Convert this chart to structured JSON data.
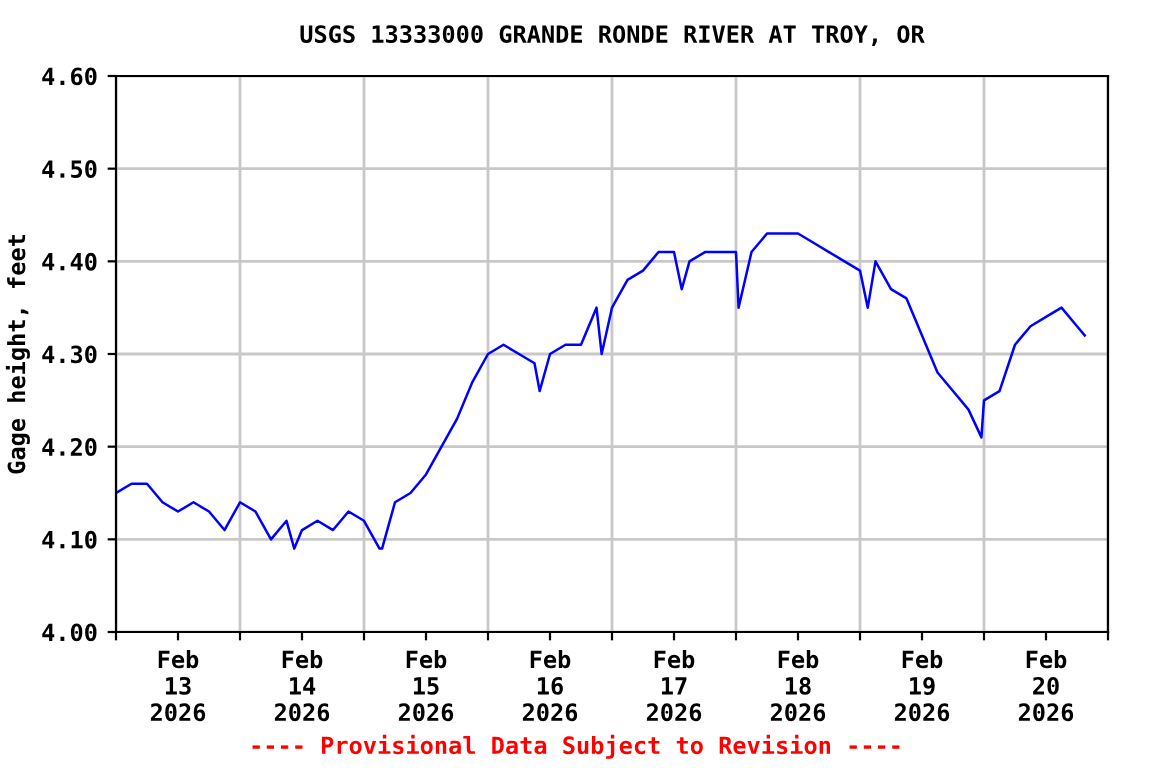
{
  "chart_data": {
    "type": "line",
    "title": "USGS 13333000 GRANDE RONDE RIVER AT TROY, OR",
    "ylabel": "Gage height, feet",
    "x": [
      "2026-02-13T00:00",
      "2026-02-13T03:00",
      "2026-02-13T06:00",
      "2026-02-13T09:00",
      "2026-02-13T12:00",
      "2026-02-13T15:00",
      "2026-02-13T18:00",
      "2026-02-13T21:00",
      "2026-02-14T00:00",
      "2026-02-14T03:00",
      "2026-02-14T06:00",
      "2026-02-14T09:00",
      "2026-02-14T10:30",
      "2026-02-14T12:00",
      "2026-02-14T15:00",
      "2026-02-14T18:00",
      "2026-02-14T21:00",
      "2026-02-15T00:00",
      "2026-02-15T03:00",
      "2026-02-15T03:30",
      "2026-02-15T06:00",
      "2026-02-15T09:00",
      "2026-02-15T12:00",
      "2026-02-15T15:00",
      "2026-02-15T18:00",
      "2026-02-15T21:00",
      "2026-02-16T00:00",
      "2026-02-16T03:00",
      "2026-02-16T06:00",
      "2026-02-16T09:00",
      "2026-02-16T10:00",
      "2026-02-16T12:00",
      "2026-02-16T15:00",
      "2026-02-16T18:00",
      "2026-02-16T21:00",
      "2026-02-16T22:00",
      "2026-02-17T00:00",
      "2026-02-17T03:00",
      "2026-02-17T06:00",
      "2026-02-17T09:00",
      "2026-02-17T12:00",
      "2026-02-17T13:30",
      "2026-02-17T15:00",
      "2026-02-17T18:00",
      "2026-02-17T21:00",
      "2026-02-18T00:00",
      "2026-02-18T00:30",
      "2026-02-18T03:00",
      "2026-02-18T06:00",
      "2026-02-18T09:00",
      "2026-02-18T12:00",
      "2026-02-18T15:00",
      "2026-02-18T18:00",
      "2026-02-18T21:00",
      "2026-02-19T00:00",
      "2026-02-19T01:30",
      "2026-02-19T03:00",
      "2026-02-19T06:00",
      "2026-02-19T09:00",
      "2026-02-19T12:00",
      "2026-02-19T15:00",
      "2026-02-19T18:00",
      "2026-02-19T21:00",
      "2026-02-19T23:30",
      "2026-02-20T00:00",
      "2026-02-20T03:00",
      "2026-02-20T06:00",
      "2026-02-20T09:00",
      "2026-02-20T12:00",
      "2026-02-20T15:00",
      "2026-02-20T18:00",
      "2026-02-20T19:30"
    ],
    "series": [
      {
        "color": "#0000ff",
        "values": [
          4.15,
          4.16,
          4.16,
          4.14,
          4.13,
          4.14,
          4.13,
          4.11,
          4.14,
          4.13,
          4.1,
          4.12,
          4.09,
          4.11,
          4.12,
          4.11,
          4.13,
          4.12,
          4.09,
          4.09,
          4.14,
          4.15,
          4.17,
          4.2,
          4.23,
          4.27,
          4.3,
          4.31,
          4.3,
          4.29,
          4.26,
          4.3,
          4.31,
          4.31,
          4.35,
          4.3,
          4.35,
          4.38,
          4.39,
          4.41,
          4.41,
          4.37,
          4.4,
          4.41,
          4.41,
          4.41,
          4.35,
          4.41,
          4.43,
          4.43,
          4.43,
          4.42,
          4.41,
          4.4,
          4.39,
          4.35,
          4.4,
          4.37,
          4.36,
          4.32,
          4.28,
          4.26,
          4.24,
          4.21,
          4.25,
          4.26,
          4.31,
          4.33,
          4.34,
          4.35,
          4.33,
          4.32
        ]
      }
    ],
    "xlim": [
      "2026-02-13T00:00",
      "2026-02-21T00:00"
    ],
    "xticks": [
      {
        "value": "2026-02-13T00:00",
        "label": null
      },
      {
        "value": "2026-02-13T12:00",
        "label": "Feb\n13\n2026"
      },
      {
        "value": "2026-02-14T00:00",
        "label": null
      },
      {
        "value": "2026-02-14T12:00",
        "label": "Feb\n14\n2026"
      },
      {
        "value": "2026-02-15T00:00",
        "label": null
      },
      {
        "value": "2026-02-15T12:00",
        "label": "Feb\n15\n2026"
      },
      {
        "value": "2026-02-16T00:00",
        "label": null
      },
      {
        "value": "2026-02-16T12:00",
        "label": "Feb\n16\n2026"
      },
      {
        "value": "2026-02-17T00:00",
        "label": null
      },
      {
        "value": "2026-02-17T12:00",
        "label": "Feb\n17\n2026"
      },
      {
        "value": "2026-02-18T00:00",
        "label": null
      },
      {
        "value": "2026-02-18T12:00",
        "label": "Feb\n18\n2026"
      },
      {
        "value": "2026-02-19T00:00",
        "label": null
      },
      {
        "value": "2026-02-19T12:00",
        "label": "Feb\n19\n2026"
      },
      {
        "value": "2026-02-20T00:00",
        "label": null
      },
      {
        "value": "2026-02-20T12:00",
        "label": "Feb\n20\n2026"
      },
      {
        "value": "2026-02-21T00:00",
        "label": null
      }
    ],
    "ylim": [
      4.0,
      4.6
    ],
    "yticks": [
      {
        "value": 4.0,
        "label": "4.00"
      },
      {
        "value": 4.1,
        "label": "4.10"
      },
      {
        "value": 4.2,
        "label": "4.20"
      },
      {
        "value": 4.3,
        "label": "4.30"
      },
      {
        "value": 4.4,
        "label": "4.40"
      },
      {
        "value": 4.5,
        "label": "4.50"
      },
      {
        "value": 4.6,
        "label": "4.60"
      }
    ],
    "grid": true,
    "line_style": "solid",
    "annotations": [
      "---- Provisional Data Subject to Revision ----"
    ]
  }
}
